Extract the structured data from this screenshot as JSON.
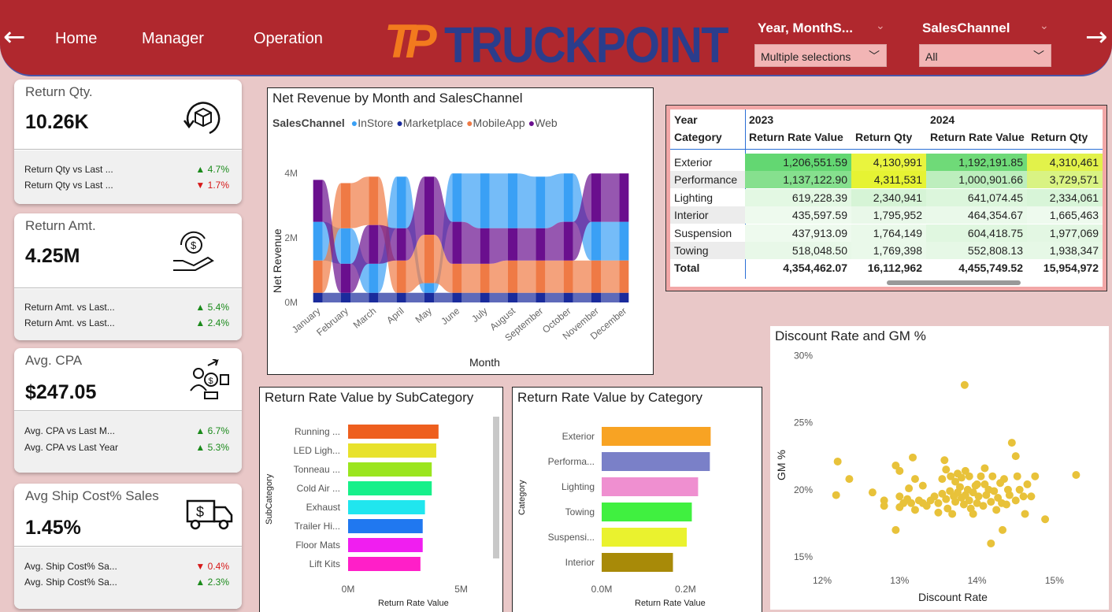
{
  "header": {
    "back_arrow": "←",
    "forward_arrow": "→",
    "nav": [
      "Home",
      "Manager",
      "Operation"
    ],
    "logo_text": "TRUCKPOINT",
    "logo_mark": "TP",
    "slicers": [
      {
        "title": "Year, MonthS...",
        "value": "Multiple selections"
      },
      {
        "title": "SalesChannel",
        "value": "All"
      }
    ]
  },
  "kpis": [
    {
      "title": "Return Qty.",
      "value": "10.26K",
      "icon": "return-box-icon",
      "comparisons": [
        {
          "label": "Return Qty vs Last ...",
          "delta": "4.7%",
          "dir": "up"
        },
        {
          "label": "Return Qty vs Last ...",
          "delta": "1.7%",
          "dir": "down"
        }
      ]
    },
    {
      "title": "Return Amt.",
      "value": "4.25M",
      "icon": "money-return-hand-icon",
      "comparisons": [
        {
          "label": "Return Amt. vs Last...",
          "delta": "5.4%",
          "dir": "up"
        },
        {
          "label": "Return Amt. vs Last...",
          "delta": "2.4%",
          "dir": "up"
        }
      ]
    },
    {
      "title": "Avg. CPA",
      "value": "$247.05",
      "icon": "customer-acquisition-icon",
      "comparisons": [
        {
          "label": "Avg. CPA vs Last M...",
          "delta": "6.7%",
          "dir": "up"
        },
        {
          "label": "Avg. CPA vs Last Year",
          "delta": "5.3%",
          "dir": "up"
        }
      ]
    },
    {
      "title": "Avg Ship Cost% Sales",
      "value": "1.45%",
      "icon": "delivery-truck-icon",
      "comparisons": [
        {
          "label": "Avg. Ship Cost% Sa...",
          "delta": "0.4%",
          "dir": "down"
        },
        {
          "label": "Avg. Ship Cost% Sa...",
          "delta": "2.3%",
          "dir": "up"
        }
      ]
    }
  ],
  "colors": {
    "header": "#b0282e",
    "instore": "#3aa0f5",
    "marketplace": "#1a2b9c",
    "mobileapp": "#ef7a45",
    "web": "#6a0f8e",
    "scatter": "#e8c23a",
    "up": "#1a8a1a",
    "down": "#d61818"
  },
  "ribbon": {
    "title": "Net Revenue by Month and SalesChannel",
    "legend_title": "SalesChannel",
    "xlabel": "Month",
    "ylabel": "Net Revenue",
    "yticks": [
      "0M",
      "2M",
      "4M"
    ]
  },
  "matrix": {
    "year_header": "Year",
    "category_header": "Category",
    "years": [
      "2023",
      "2024"
    ],
    "measures": [
      "Return Rate Value",
      "Return Qty"
    ],
    "rows": [
      {
        "category": "Exterior",
        "values": [
          "1,206,551.59",
          "4,130,991",
          "1,192,191.85",
          "4,310,461"
        ]
      },
      {
        "category": "Performance",
        "values": [
          "1,137,122.90",
          "4,311,531",
          "1,000,901.66",
          "3,729,571"
        ]
      },
      {
        "category": "Lighting",
        "values": [
          "619,228.39",
          "2,340,941",
          "641,074.45",
          "2,334,061"
        ]
      },
      {
        "category": "Interior",
        "values": [
          "435,597.59",
          "1,795,952",
          "464,354.67",
          "1,665,463"
        ]
      },
      {
        "category": "Suspension",
        "values": [
          "437,913.09",
          "1,764,149",
          "604,418.75",
          "1,977,069"
        ]
      },
      {
        "category": "Towing",
        "values": [
          "518,048.50",
          "1,769,398",
          "552,808.13",
          "1,938,347"
        ]
      }
    ],
    "total": {
      "label": "Total",
      "values": [
        "4,354,462.07",
        "16,112,962",
        "4,455,749.52",
        "15,954,972"
      ]
    }
  },
  "subcat": {
    "title": "Return Rate Value by SubCategory",
    "ylabel": "SubCategory",
    "xlabel": "Return Rate Value",
    "xticks": [
      "0M",
      "5M"
    ]
  },
  "cat": {
    "title": "Return Rate Value by Category",
    "ylabel": "Category",
    "xlabel": "Return Rate Value",
    "xticks": [
      "0.0M",
      "0.2M"
    ]
  },
  "scatter": {
    "title": "Discount Rate and GM %",
    "xlabel": "Discount Rate",
    "ylabel": "GM %",
    "xticks": [
      "12%",
      "13%",
      "14%",
      "15%"
    ],
    "yticks": [
      "15%",
      "20%",
      "25%",
      "30%"
    ]
  },
  "chart_data": [
    {
      "type": "area",
      "title": "Net Revenue by Month and SalesChannel",
      "xlabel": "Month",
      "ylabel": "Net Revenue",
      "categories": [
        "January",
        "February",
        "March",
        "April",
        "May",
        "June",
        "July",
        "August",
        "September",
        "October",
        "November",
        "December"
      ],
      "ylim": [
        0,
        4.2
      ],
      "series": [
        {
          "name": "InStore",
          "values": [
            1.2,
            1.1,
            0.9,
            1.6,
            0.3,
            1.5,
            1.7,
            1.7,
            1.6,
            1.5,
            1.2,
            1.2
          ]
        },
        {
          "name": "Marketplace",
          "values": [
            0.3,
            0.3,
            0.3,
            0.3,
            0.3,
            0.3,
            0.3,
            0.3,
            0.3,
            0.3,
            0.3,
            0.3
          ]
        },
        {
          "name": "MobileApp",
          "values": [
            1.0,
            1.4,
            1.5,
            1.0,
            1.5,
            0.9,
            0.9,
            1.0,
            1.0,
            1.0,
            1.0,
            1.0
          ]
        },
        {
          "name": "Web",
          "values": [
            1.3,
            0.9,
            1.2,
            1.0,
            1.8,
            1.3,
            1.1,
            1.0,
            1.0,
            1.2,
            1.5,
            1.5
          ]
        }
      ]
    },
    {
      "type": "bar",
      "title": "Return Rate Value by SubCategory",
      "xlabel": "Return Rate Value",
      "ylabel": "SubCategory",
      "categories": [
        "Running ...",
        "LED Ligh...",
        "Tonneau ...",
        "Cold Air ...",
        "Exhaust",
        "Trailer Hi...",
        "Floor Mats",
        "Lift Kits"
      ],
      "values": [
        4.0,
        3.9,
        3.7,
        3.7,
        3.4,
        3.3,
        3.3,
        3.2
      ],
      "xlim": [
        0,
        6.2
      ],
      "colors": [
        "#ee5f1e",
        "#e8e22c",
        "#9be51e",
        "#17f08a",
        "#20e6ee",
        "#2078f0",
        "#f01ef0",
        "#ff1fc8"
      ]
    },
    {
      "type": "bar",
      "title": "Return Rate Value by Category",
      "xlabel": "Return Rate Value",
      "ylabel": "Category",
      "categories": [
        "Exterior",
        "Performa...",
        "Lighting",
        "Towing",
        "Suspensi...",
        "Interior"
      ],
      "values": [
        0.26,
        0.258,
        0.23,
        0.215,
        0.203,
        0.17
      ],
      "xlim": [
        0,
        0.34
      ],
      "colors": [
        "#f8a323",
        "#7a80c8",
        "#ef8fd0",
        "#40f040",
        "#eaf22e",
        "#a88a08"
      ]
    },
    {
      "type": "scatter",
      "title": "Discount Rate and GM %",
      "xlabel": "Discount Rate",
      "ylabel": "GM %",
      "xlim": [
        11.8,
        15.4
      ],
      "ylim": [
        14.5,
        30.2
      ],
      "points": [
        [
          13.84,
          27.8
        ],
        [
          14.45,
          23.5
        ],
        [
          14.5,
          22.5
        ],
        [
          15.28,
          21.1
        ],
        [
          14.52,
          21.0
        ],
        [
          12.2,
          22.1
        ],
        [
          12.35,
          20.8
        ],
        [
          12.18,
          19.6
        ],
        [
          13.17,
          22.4
        ],
        [
          13.58,
          22.2
        ],
        [
          13.6,
          21.5
        ],
        [
          13.66,
          21.0
        ],
        [
          13.72,
          20.6
        ],
        [
          13.8,
          20.9
        ],
        [
          13.85,
          21.4
        ],
        [
          13.9,
          21.0
        ],
        [
          14.0,
          20.4
        ],
        [
          14.05,
          21.0
        ],
        [
          14.1,
          20.4
        ],
        [
          14.15,
          20.0
        ],
        [
          14.2,
          21.0
        ],
        [
          14.35,
          20.8
        ],
        [
          14.3,
          20.5
        ],
        [
          14.4,
          20.0
        ],
        [
          14.55,
          20.0
        ],
        [
          14.62,
          18.2
        ],
        [
          14.33,
          17.0
        ],
        [
          14.18,
          16.0
        ],
        [
          12.95,
          17.0
        ],
        [
          12.65,
          19.8
        ],
        [
          12.8,
          19.2
        ],
        [
          12.8,
          18.8
        ],
        [
          13.0,
          18.7
        ],
        [
          13.05,
          19.0
        ],
        [
          13.1,
          19.3
        ],
        [
          13.15,
          19.0
        ],
        [
          13.2,
          18.5
        ],
        [
          13.25,
          19.2
        ],
        [
          13.3,
          19.0
        ],
        [
          13.35,
          18.8
        ],
        [
          13.4,
          19.2
        ],
        [
          13.45,
          19.5
        ],
        [
          13.5,
          19.0
        ],
        [
          13.55,
          19.7
        ],
        [
          13.6,
          19.3
        ],
        [
          13.62,
          18.6
        ],
        [
          13.65,
          19.9
        ],
        [
          13.7,
          19.5
        ],
        [
          13.72,
          19.1
        ],
        [
          13.75,
          19.8
        ],
        [
          13.78,
          20.2
        ],
        [
          13.8,
          19.4
        ],
        [
          13.83,
          18.9
        ],
        [
          13.85,
          19.6
        ],
        [
          13.88,
          20.0
        ],
        [
          13.9,
          19.2
        ],
        [
          13.92,
          18.6
        ],
        [
          13.95,
          19.8
        ],
        [
          13.98,
          20.3
        ],
        [
          14.0,
          19.0
        ],
        [
          14.02,
          19.5
        ],
        [
          14.08,
          18.8
        ],
        [
          14.12,
          19.6
        ],
        [
          14.18,
          19.1
        ],
        [
          14.22,
          19.9
        ],
        [
          14.27,
          19.4
        ],
        [
          14.32,
          19.0
        ],
        [
          14.38,
          18.9
        ],
        [
          14.42,
          19.6
        ],
        [
          13.5,
          18.3
        ],
        [
          13.3,
          20.3
        ],
        [
          13.2,
          20.8
        ],
        [
          13.0,
          21.4
        ],
        [
          12.95,
          21.8
        ],
        [
          14.25,
          18.5
        ],
        [
          13.68,
          18.2
        ],
        [
          13.95,
          18.2
        ],
        [
          14.6,
          19.5
        ],
        [
          14.7,
          19.5
        ],
        [
          14.1,
          21.6
        ],
        [
          13.75,
          21.2
        ],
        [
          13.55,
          20.8
        ],
        [
          13.12,
          20.1
        ],
        [
          13.0,
          19.5
        ],
        [
          14.65,
          20.4
        ],
        [
          14.75,
          21.0
        ],
        [
          14.88,
          17.8
        ],
        [
          14.5,
          19.2
        ]
      ]
    }
  ]
}
